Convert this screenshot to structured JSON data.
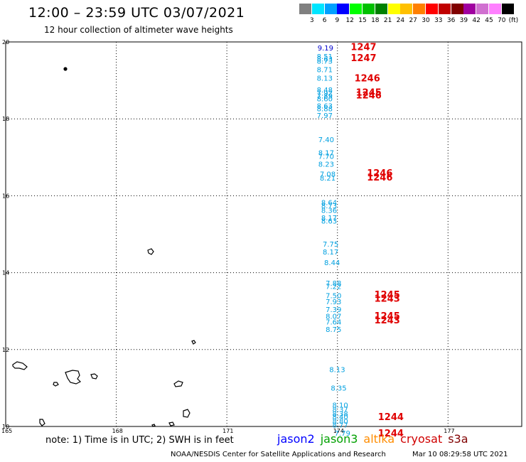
{
  "header": {
    "title": "12:00 – 23:59 UTC 03/07/2021",
    "subtitle": "12 hour collection of altimeter wave heights"
  },
  "legend": {
    "unit": "(ft)",
    "colors": [
      "#808080",
      "#00e5ff",
      "#00a0ff",
      "#0000ff",
      "#00ff00",
      "#00c000",
      "#008000",
      "#ffff00",
      "#ffc000",
      "#ff8000",
      "#ff0000",
      "#c00000",
      "#800000",
      "#a000a0",
      "#d070d0",
      "#ff80ff",
      "#000000"
    ],
    "labels": [
      "3",
      "6",
      "9",
      "12",
      "15",
      "18",
      "21",
      "24",
      "27",
      "30",
      "33",
      "36",
      "39",
      "42",
      "45",
      "70"
    ]
  },
  "axes": {
    "lat_labels": [
      "20",
      "18",
      "16",
      "14",
      "12",
      "10"
    ],
    "lon_labels": [
      "165",
      "168",
      "171",
      "174",
      "177"
    ]
  },
  "observations": [
    {
      "lon": 174.0,
      "lat": 19.85,
      "v": "9.19",
      "sat": "jason2"
    },
    {
      "lon": 173.98,
      "lat": 19.63,
      "v": "8.51",
      "sat": "jason3"
    },
    {
      "lon": 173.98,
      "lat": 19.57,
      "v": "8.63",
      "sat": "jason3"
    },
    {
      "lon": 173.98,
      "lat": 19.51,
      "v": "8.73",
      "sat": "jason3"
    },
    {
      "lon": 173.98,
      "lat": 19.29,
      "v": "8.71",
      "sat": "jason3"
    },
    {
      "lon": 173.98,
      "lat": 19.07,
      "v": "8.13",
      "sat": "jason3"
    },
    {
      "lon": 173.98,
      "lat": 18.76,
      "v": "8.48",
      "sat": "jason3"
    },
    {
      "lon": 173.98,
      "lat": 18.68,
      "v": "7.92",
      "sat": "jason3"
    },
    {
      "lon": 173.98,
      "lat": 18.6,
      "v": "7.89",
      "sat": "jason3"
    },
    {
      "lon": 173.98,
      "lat": 18.53,
      "v": "8.60",
      "sat": "jason3"
    },
    {
      "lon": 173.98,
      "lat": 18.35,
      "v": "8.63",
      "sat": "jason3"
    },
    {
      "lon": 173.98,
      "lat": 18.27,
      "v": "8.88",
      "sat": "jason3"
    },
    {
      "lon": 173.98,
      "lat": 18.1,
      "v": "7.97",
      "sat": "jason3"
    },
    {
      "lon": 174.02,
      "lat": 17.47,
      "v": "7.40",
      "sat": "jason3"
    },
    {
      "lon": 174.02,
      "lat": 17.13,
      "v": "8.17",
      "sat": "jason3"
    },
    {
      "lon": 174.02,
      "lat": 17.03,
      "v": "7.70",
      "sat": "jason3"
    },
    {
      "lon": 174.02,
      "lat": 16.83,
      "v": "8.23",
      "sat": "jason3"
    },
    {
      "lon": 174.06,
      "lat": 16.57,
      "v": "7.08",
      "sat": "jason3"
    },
    {
      "lon": 174.06,
      "lat": 16.47,
      "v": "8.21",
      "sat": "jason3"
    },
    {
      "lon": 174.1,
      "lat": 15.83,
      "v": "8.64",
      "sat": "jason3"
    },
    {
      "lon": 174.1,
      "lat": 15.75,
      "v": "8.73",
      "sat": "jason3"
    },
    {
      "lon": 174.1,
      "lat": 15.63,
      "v": "8.36",
      "sat": "jason3"
    },
    {
      "lon": 174.1,
      "lat": 15.43,
      "v": "8.17",
      "sat": "jason3"
    },
    {
      "lon": 174.1,
      "lat": 15.35,
      "v": "8.63",
      "sat": "jason3"
    },
    {
      "lon": 174.14,
      "lat": 14.75,
      "v": "7.75",
      "sat": "jason3"
    },
    {
      "lon": 174.14,
      "lat": 14.55,
      "v": "8.17",
      "sat": "jason3"
    },
    {
      "lon": 174.18,
      "lat": 14.27,
      "v": "8.44",
      "sat": "jason3"
    },
    {
      "lon": 174.22,
      "lat": 13.73,
      "v": "7.88",
      "sat": "jason3"
    },
    {
      "lon": 174.22,
      "lat": 13.65,
      "v": "7.22",
      "sat": "jason3"
    },
    {
      "lon": 174.22,
      "lat": 13.41,
      "v": "7.50",
      "sat": "jason3"
    },
    {
      "lon": 174.22,
      "lat": 13.25,
      "v": "7.93",
      "sat": "jason3"
    },
    {
      "lon": 174.22,
      "lat": 13.05,
      "v": "7.39",
      "sat": "jason3"
    },
    {
      "lon": 174.22,
      "lat": 12.87,
      "v": "8.07",
      "sat": "jason3"
    },
    {
      "lon": 174.22,
      "lat": 12.73,
      "v": "7.64",
      "sat": "jason3"
    },
    {
      "lon": 174.22,
      "lat": 12.53,
      "v": "8.75",
      "sat": "jason3"
    },
    {
      "lon": 174.32,
      "lat": 11.49,
      "v": "8.13",
      "sat": "jason3"
    },
    {
      "lon": 174.36,
      "lat": 11.01,
      "v": "8.35",
      "sat": "jason3"
    },
    {
      "lon": 174.4,
      "lat": 10.56,
      "v": "8.10",
      "sat": "jason3"
    },
    {
      "lon": 174.4,
      "lat": 10.45,
      "v": "8.37",
      "sat": "jason3"
    },
    {
      "lon": 174.4,
      "lat": 10.34,
      "v": "8.38",
      "sat": "jason3"
    },
    {
      "lon": 174.4,
      "lat": 10.26,
      "v": "8.40",
      "sat": "jason3"
    },
    {
      "lon": 174.4,
      "lat": 10.15,
      "v": "8.80",
      "sat": "jason3"
    },
    {
      "lon": 174.4,
      "lat": 10.05,
      "v": "8.77",
      "sat": "jason3"
    },
    {
      "lon": 174.46,
      "lat": 9.83,
      "v": "7.79",
      "sat": "jason3"
    }
  ],
  "time_labels": [
    {
      "lon": 174.36,
      "lat": 19.88,
      "t": "1247"
    },
    {
      "lon": 174.36,
      "lat": 19.59,
      "t": "1247"
    },
    {
      "lon": 174.46,
      "lat": 19.07,
      "t": "1246"
    },
    {
      "lon": 174.5,
      "lat": 18.7,
      "t": "1245"
    },
    {
      "lon": 174.5,
      "lat": 18.62,
      "t": "1246"
    },
    {
      "lon": 174.8,
      "lat": 16.6,
      "t": "1246"
    },
    {
      "lon": 174.8,
      "lat": 16.49,
      "t": "1246"
    },
    {
      "lon": 175.0,
      "lat": 13.44,
      "t": "1245"
    },
    {
      "lon": 175.0,
      "lat": 13.34,
      "t": "1243"
    },
    {
      "lon": 175.0,
      "lat": 12.88,
      "t": "1245"
    },
    {
      "lon": 175.0,
      "lat": 12.77,
      "t": "1243"
    },
    {
      "lon": 175.1,
      "lat": 10.26,
      "t": "1244"
    },
    {
      "lon": 175.1,
      "lat": 9.83,
      "t": "1244"
    }
  ],
  "sat_colors": {
    "jason2": "#0000cc",
    "jason3": "#00a0e0",
    "time": "#e00000"
  },
  "bottom": {
    "note": "note: 1) Time is in UTC; 2) SWH is in feet",
    "sats": [
      {
        "name": "jason2",
        "color": "#0000ff"
      },
      {
        "name": "jason3",
        "color": "#00a000"
      },
      {
        "name": "altika",
        "color": "#ff8c00"
      },
      {
        "name": "cryosat",
        "color": "#d00000"
      },
      {
        "name": "s3a",
        "color": "#800000"
      }
    ],
    "credit": "NOAA/NESDIS Center for Satellite Applications and Research",
    "timestamp": "Mar 10 08:29:58 UTC 2021"
  }
}
